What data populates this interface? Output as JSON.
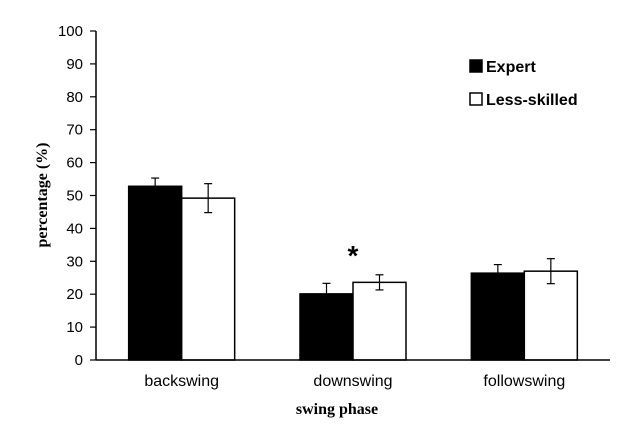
{
  "chart_data": {
    "type": "bar",
    "title": "",
    "xlabel": "swing phase",
    "ylabel": "percentage (%)",
    "ylim": [
      0,
      100
    ],
    "yticks": [
      0,
      10,
      20,
      30,
      40,
      50,
      60,
      70,
      80,
      90,
      100
    ],
    "grid": false,
    "legend_position": "top-right",
    "categories": [
      "backswing",
      "downswing",
      "followswing"
    ],
    "series": [
      {
        "name": "Expert",
        "color": "#000000",
        "values": [
          52.8,
          20.1,
          26.4
        ],
        "errors": [
          2.5,
          3.2,
          2.6
        ]
      },
      {
        "name": "Less-skilled",
        "color": "#ffffff",
        "values": [
          49.2,
          23.6,
          27.0
        ],
        "errors": [
          4.4,
          2.3,
          3.8
        ]
      }
    ],
    "annotations": [
      {
        "category": "downswing",
        "text": "*"
      }
    ]
  }
}
